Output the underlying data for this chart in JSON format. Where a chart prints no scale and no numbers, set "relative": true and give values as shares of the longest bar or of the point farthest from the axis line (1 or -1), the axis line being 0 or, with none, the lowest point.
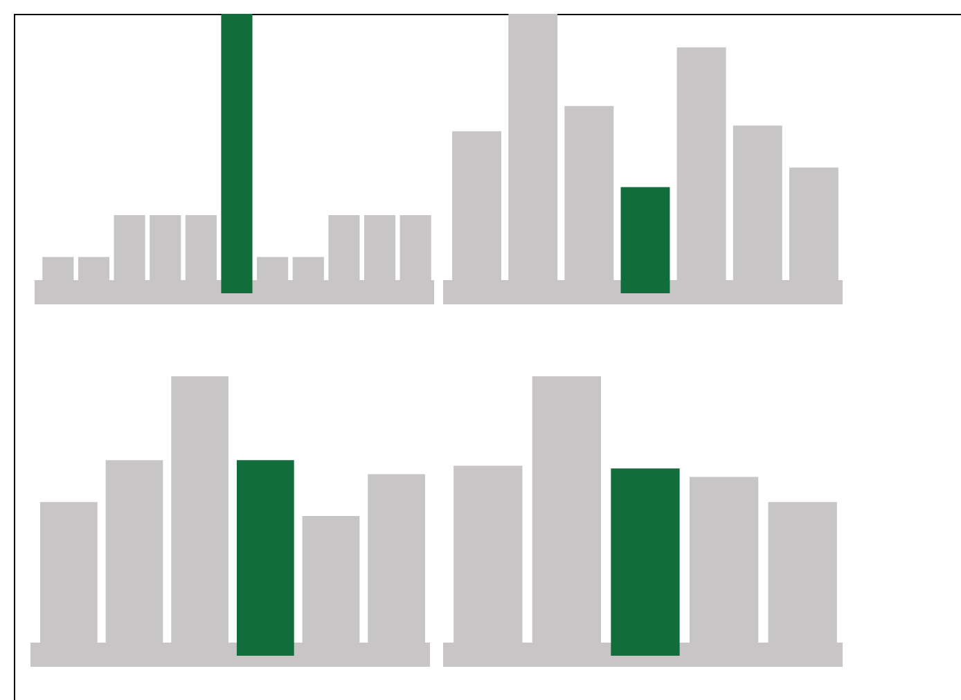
{
  "chart_data": [
    {
      "type": "bar",
      "relative": true,
      "categories": [
        null,
        null,
        null,
        null,
        null,
        null,
        null,
        null,
        null,
        null,
        null
      ],
      "values": [
        0.13,
        0.13,
        0.28,
        0.28,
        0.28,
        1,
        0.13,
        0.13,
        0.28,
        0.28,
        0.28
      ],
      "colors": [
        "#c7c5c6",
        "#c7c5c6",
        "#c7c5c6",
        "#c7c5c6",
        "#c7c5c6",
        "#116d3c",
        "#c7c5c6",
        "#c7c5c6",
        "#c7c5c6",
        "#c7c5c6",
        "#c7c5c6"
      ]
    },
    {
      "type": "bar",
      "relative": true,
      "categories": [
        null,
        null,
        null,
        null,
        null,
        null,
        null
      ],
      "values": [
        0.58,
        1,
        0.67,
        0.38,
        0.88,
        0.6,
        0.45
      ],
      "colors": [
        "#c7c5c6",
        "#c7c5c6",
        "#c7c5c6",
        "#116d3c",
        "#c7c5c6",
        "#c7c5c6",
        "#c7c5c6"
      ]
    },
    {
      "type": "bar",
      "relative": true,
      "categories": [
        null,
        null,
        null,
        null,
        null,
        null
      ],
      "values": [
        0.55,
        0.7,
        1,
        0.7,
        0.5,
        0.65
      ],
      "colors": [
        "#c7c5c6",
        "#c7c5c6",
        "#c7c5c6",
        "#116d3c",
        "#c7c5c6",
        "#c7c5c6"
      ]
    },
    {
      "type": "bar",
      "relative": true,
      "categories": [
        null,
        null,
        null,
        null,
        null
      ],
      "values": [
        0.68,
        1,
        0.67,
        0.64,
        0.55
      ],
      "colors": [
        "#c7c5c6",
        "#c7c5c6",
        "#116d3c",
        "#c7c5c6",
        "#c7c5c6"
      ]
    }
  ]
}
